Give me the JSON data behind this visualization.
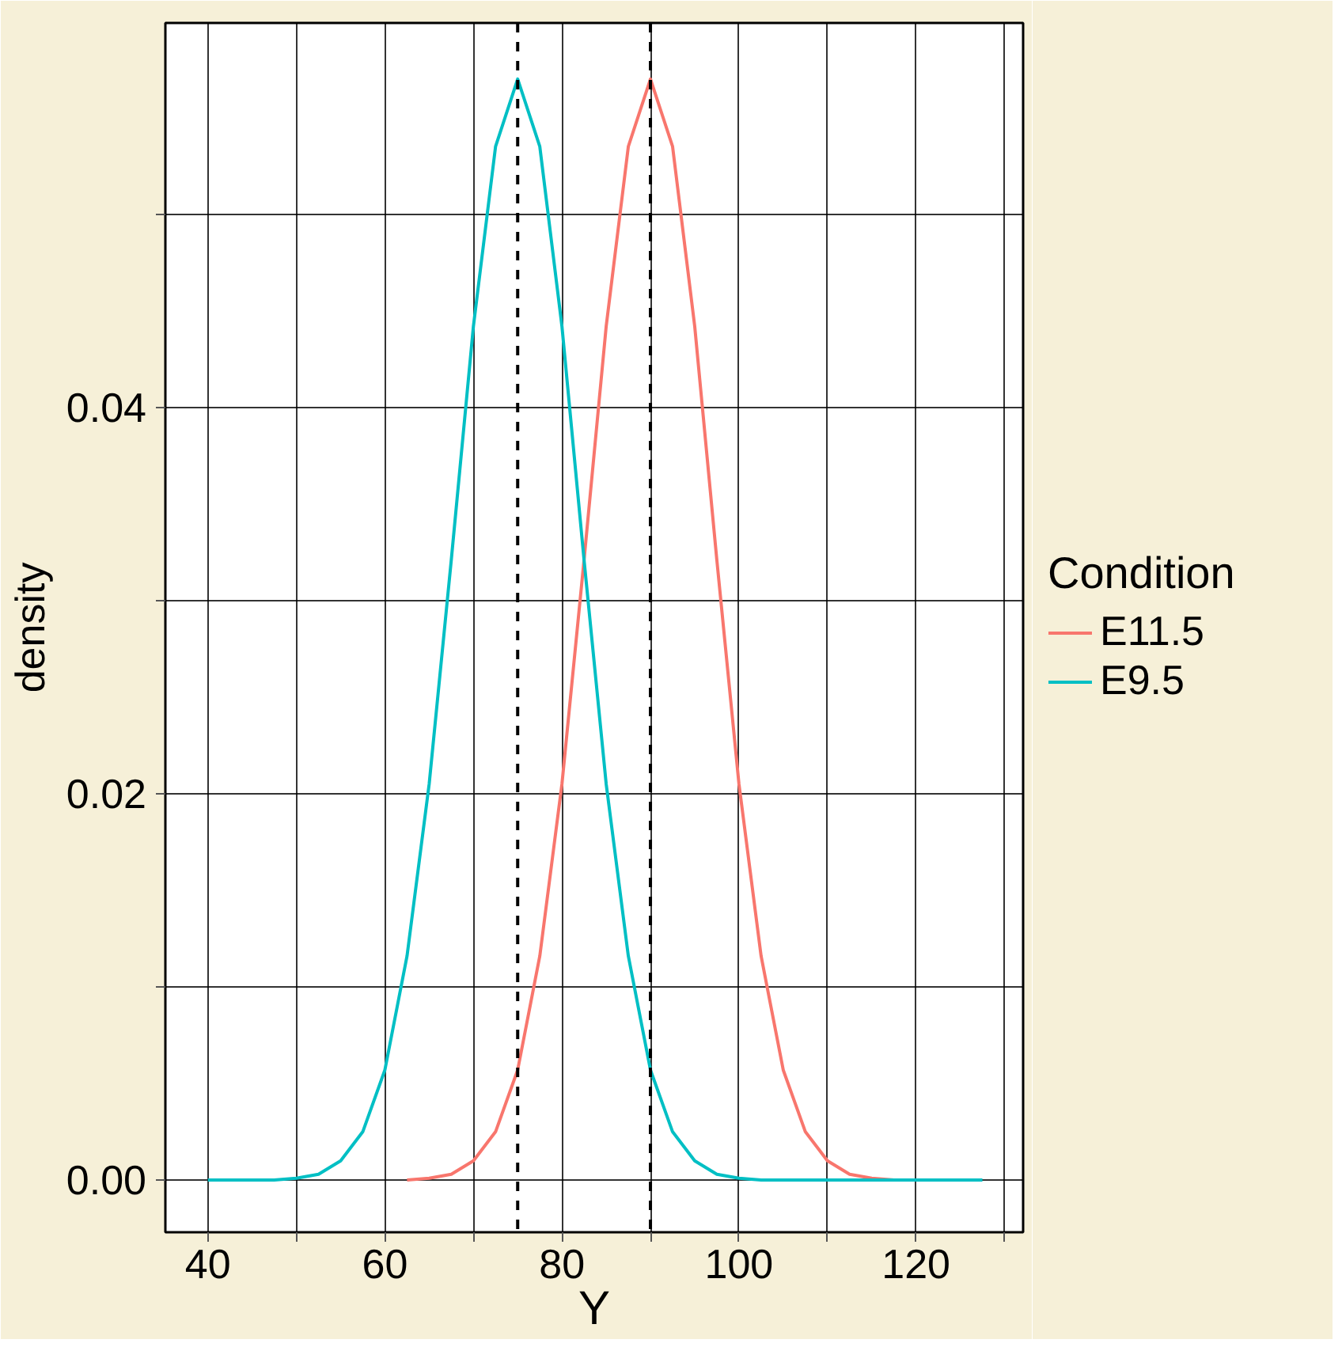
{
  "chart_data": {
    "type": "line",
    "xlabel": "Y",
    "ylabel": "density",
    "legend_title": "Condition",
    "legend": "right",
    "x": [
      40,
      42.5,
      45,
      47.5,
      50,
      52.5,
      55,
      57.5,
      60,
      62.5,
      65,
      67.5,
      70,
      72.5,
      75,
      77.5,
      80,
      82.5,
      85,
      87.5,
      90,
      92.5,
      95,
      97.5,
      100,
      102.5,
      105,
      107.5,
      110,
      112.5,
      115,
      117.5,
      120,
      122.5,
      125,
      127.5
    ],
    "series": [
      {
        "name": "E11.5",
        "color": "#f8766d",
        "values": [
          null,
          null,
          null,
          null,
          null,
          null,
          null,
          null,
          null,
          0,
          0.0001,
          0.0003,
          0.001,
          0.0025,
          0.0057,
          0.0116,
          0.0205,
          0.0321,
          0.0442,
          0.0535,
          0.057,
          0.0535,
          0.0442,
          0.0321,
          0.0205,
          0.0116,
          0.0057,
          0.0025,
          0.001,
          0.0003,
          0.0001,
          0,
          null,
          null,
          null,
          null
        ]
      },
      {
        "name": "E9.5",
        "color": "#00bfc4",
        "values": [
          0,
          0,
          0,
          0,
          0.0001,
          0.0003,
          0.001,
          0.0025,
          0.0057,
          0.0116,
          0.0205,
          0.0321,
          0.0442,
          0.0535,
          0.057,
          0.0535,
          0.0442,
          0.0321,
          0.0205,
          0.0116,
          0.0057,
          0.0025,
          0.001,
          0.0003,
          0.0001,
          0,
          0,
          0,
          0,
          0,
          0,
          0,
          0,
          0,
          0,
          0
        ]
      }
    ],
    "xlim": [
      35.2,
      132.1
    ],
    "ylim": [
      -0.0027,
      0.0599
    ],
    "xticks": [
      40,
      {
        "value": 50,
        "label": null
      },
      60,
      {
        "value": 70,
        "label": null
      },
      80,
      {
        "value": 90,
        "label": null
      },
      100,
      {
        "value": 110,
        "label": null
      },
      120,
      {
        "value": 130,
        "label": null
      }
    ],
    "yticks": [
      {
        "value": 0,
        "label": "0.00"
      },
      {
        "value": 0.01,
        "label": null
      },
      {
        "value": 0.02,
        "label": "0.02"
      },
      {
        "value": 0.03,
        "label": null
      },
      {
        "value": 0.04,
        "label": "0.04"
      },
      {
        "value": 0.05,
        "label": null
      }
    ],
    "ref_lines": [
      {
        "axis": "x",
        "value": 75,
        "color": "#000000",
        "line_style": "dashed"
      },
      {
        "axis": "x",
        "value": 90,
        "color": "#000000",
        "line_style": "dashed"
      }
    ],
    "grid": true,
    "line_style": "solid",
    "marker": "none"
  }
}
